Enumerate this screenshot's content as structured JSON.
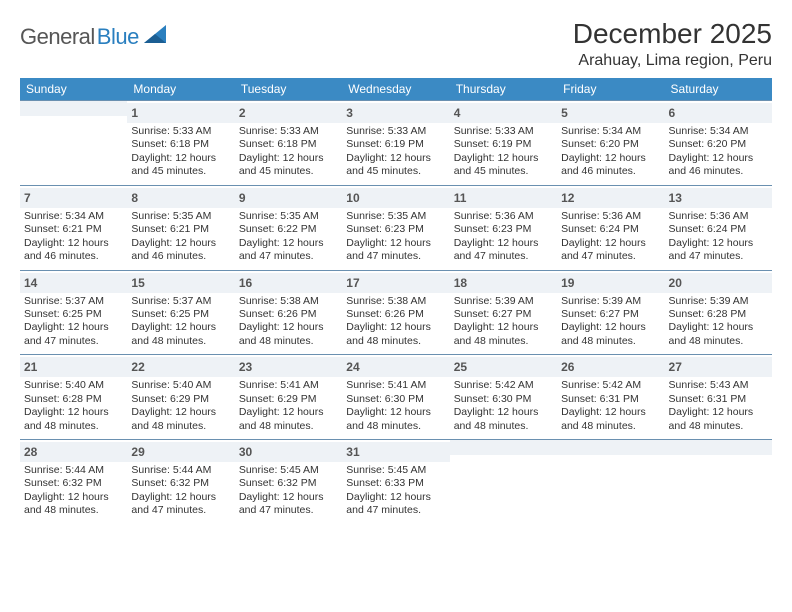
{
  "logo": {
    "general": "General",
    "blue": "Blue"
  },
  "title": "December 2025",
  "location": "Arahuay, Lima region, Peru",
  "colors": {
    "header_bg": "#3b8ac4",
    "header_text": "#ffffff",
    "daynum_bg": "#eef2f6",
    "cell_border": "#6a90b0",
    "page_bg": "#ffffff",
    "logo_gray": "#565656",
    "logo_blue": "#2a7fbf"
  },
  "weekdays": [
    "Sunday",
    "Monday",
    "Tuesday",
    "Wednesday",
    "Thursday",
    "Friday",
    "Saturday"
  ],
  "weeks": [
    [
      null,
      {
        "n": "1",
        "rise": "Sunrise: 5:33 AM",
        "set": "Sunset: 6:18 PM",
        "d1": "Daylight: 12 hours",
        "d2": "and 45 minutes."
      },
      {
        "n": "2",
        "rise": "Sunrise: 5:33 AM",
        "set": "Sunset: 6:18 PM",
        "d1": "Daylight: 12 hours",
        "d2": "and 45 minutes."
      },
      {
        "n": "3",
        "rise": "Sunrise: 5:33 AM",
        "set": "Sunset: 6:19 PM",
        "d1": "Daylight: 12 hours",
        "d2": "and 45 minutes."
      },
      {
        "n": "4",
        "rise": "Sunrise: 5:33 AM",
        "set": "Sunset: 6:19 PM",
        "d1": "Daylight: 12 hours",
        "d2": "and 45 minutes."
      },
      {
        "n": "5",
        "rise": "Sunrise: 5:34 AM",
        "set": "Sunset: 6:20 PM",
        "d1": "Daylight: 12 hours",
        "d2": "and 46 minutes."
      },
      {
        "n": "6",
        "rise": "Sunrise: 5:34 AM",
        "set": "Sunset: 6:20 PM",
        "d1": "Daylight: 12 hours",
        "d2": "and 46 minutes."
      }
    ],
    [
      {
        "n": "7",
        "rise": "Sunrise: 5:34 AM",
        "set": "Sunset: 6:21 PM",
        "d1": "Daylight: 12 hours",
        "d2": "and 46 minutes."
      },
      {
        "n": "8",
        "rise": "Sunrise: 5:35 AM",
        "set": "Sunset: 6:21 PM",
        "d1": "Daylight: 12 hours",
        "d2": "and 46 minutes."
      },
      {
        "n": "9",
        "rise": "Sunrise: 5:35 AM",
        "set": "Sunset: 6:22 PM",
        "d1": "Daylight: 12 hours",
        "d2": "and 47 minutes."
      },
      {
        "n": "10",
        "rise": "Sunrise: 5:35 AM",
        "set": "Sunset: 6:23 PM",
        "d1": "Daylight: 12 hours",
        "d2": "and 47 minutes."
      },
      {
        "n": "11",
        "rise": "Sunrise: 5:36 AM",
        "set": "Sunset: 6:23 PM",
        "d1": "Daylight: 12 hours",
        "d2": "and 47 minutes."
      },
      {
        "n": "12",
        "rise": "Sunrise: 5:36 AM",
        "set": "Sunset: 6:24 PM",
        "d1": "Daylight: 12 hours",
        "d2": "and 47 minutes."
      },
      {
        "n": "13",
        "rise": "Sunrise: 5:36 AM",
        "set": "Sunset: 6:24 PM",
        "d1": "Daylight: 12 hours",
        "d2": "and 47 minutes."
      }
    ],
    [
      {
        "n": "14",
        "rise": "Sunrise: 5:37 AM",
        "set": "Sunset: 6:25 PM",
        "d1": "Daylight: 12 hours",
        "d2": "and 47 minutes."
      },
      {
        "n": "15",
        "rise": "Sunrise: 5:37 AM",
        "set": "Sunset: 6:25 PM",
        "d1": "Daylight: 12 hours",
        "d2": "and 48 minutes."
      },
      {
        "n": "16",
        "rise": "Sunrise: 5:38 AM",
        "set": "Sunset: 6:26 PM",
        "d1": "Daylight: 12 hours",
        "d2": "and 48 minutes."
      },
      {
        "n": "17",
        "rise": "Sunrise: 5:38 AM",
        "set": "Sunset: 6:26 PM",
        "d1": "Daylight: 12 hours",
        "d2": "and 48 minutes."
      },
      {
        "n": "18",
        "rise": "Sunrise: 5:39 AM",
        "set": "Sunset: 6:27 PM",
        "d1": "Daylight: 12 hours",
        "d2": "and 48 minutes."
      },
      {
        "n": "19",
        "rise": "Sunrise: 5:39 AM",
        "set": "Sunset: 6:27 PM",
        "d1": "Daylight: 12 hours",
        "d2": "and 48 minutes."
      },
      {
        "n": "20",
        "rise": "Sunrise: 5:39 AM",
        "set": "Sunset: 6:28 PM",
        "d1": "Daylight: 12 hours",
        "d2": "and 48 minutes."
      }
    ],
    [
      {
        "n": "21",
        "rise": "Sunrise: 5:40 AM",
        "set": "Sunset: 6:28 PM",
        "d1": "Daylight: 12 hours",
        "d2": "and 48 minutes."
      },
      {
        "n": "22",
        "rise": "Sunrise: 5:40 AM",
        "set": "Sunset: 6:29 PM",
        "d1": "Daylight: 12 hours",
        "d2": "and 48 minutes."
      },
      {
        "n": "23",
        "rise": "Sunrise: 5:41 AM",
        "set": "Sunset: 6:29 PM",
        "d1": "Daylight: 12 hours",
        "d2": "and 48 minutes."
      },
      {
        "n": "24",
        "rise": "Sunrise: 5:41 AM",
        "set": "Sunset: 6:30 PM",
        "d1": "Daylight: 12 hours",
        "d2": "and 48 minutes."
      },
      {
        "n": "25",
        "rise": "Sunrise: 5:42 AM",
        "set": "Sunset: 6:30 PM",
        "d1": "Daylight: 12 hours",
        "d2": "and 48 minutes."
      },
      {
        "n": "26",
        "rise": "Sunrise: 5:42 AM",
        "set": "Sunset: 6:31 PM",
        "d1": "Daylight: 12 hours",
        "d2": "and 48 minutes."
      },
      {
        "n": "27",
        "rise": "Sunrise: 5:43 AM",
        "set": "Sunset: 6:31 PM",
        "d1": "Daylight: 12 hours",
        "d2": "and 48 minutes."
      }
    ],
    [
      {
        "n": "28",
        "rise": "Sunrise: 5:44 AM",
        "set": "Sunset: 6:32 PM",
        "d1": "Daylight: 12 hours",
        "d2": "and 48 minutes."
      },
      {
        "n": "29",
        "rise": "Sunrise: 5:44 AM",
        "set": "Sunset: 6:32 PM",
        "d1": "Daylight: 12 hours",
        "d2": "and 47 minutes."
      },
      {
        "n": "30",
        "rise": "Sunrise: 5:45 AM",
        "set": "Sunset: 6:32 PM",
        "d1": "Daylight: 12 hours",
        "d2": "and 47 minutes."
      },
      {
        "n": "31",
        "rise": "Sunrise: 5:45 AM",
        "set": "Sunset: 6:33 PM",
        "d1": "Daylight: 12 hours",
        "d2": "and 47 minutes."
      },
      null,
      null,
      null
    ]
  ]
}
